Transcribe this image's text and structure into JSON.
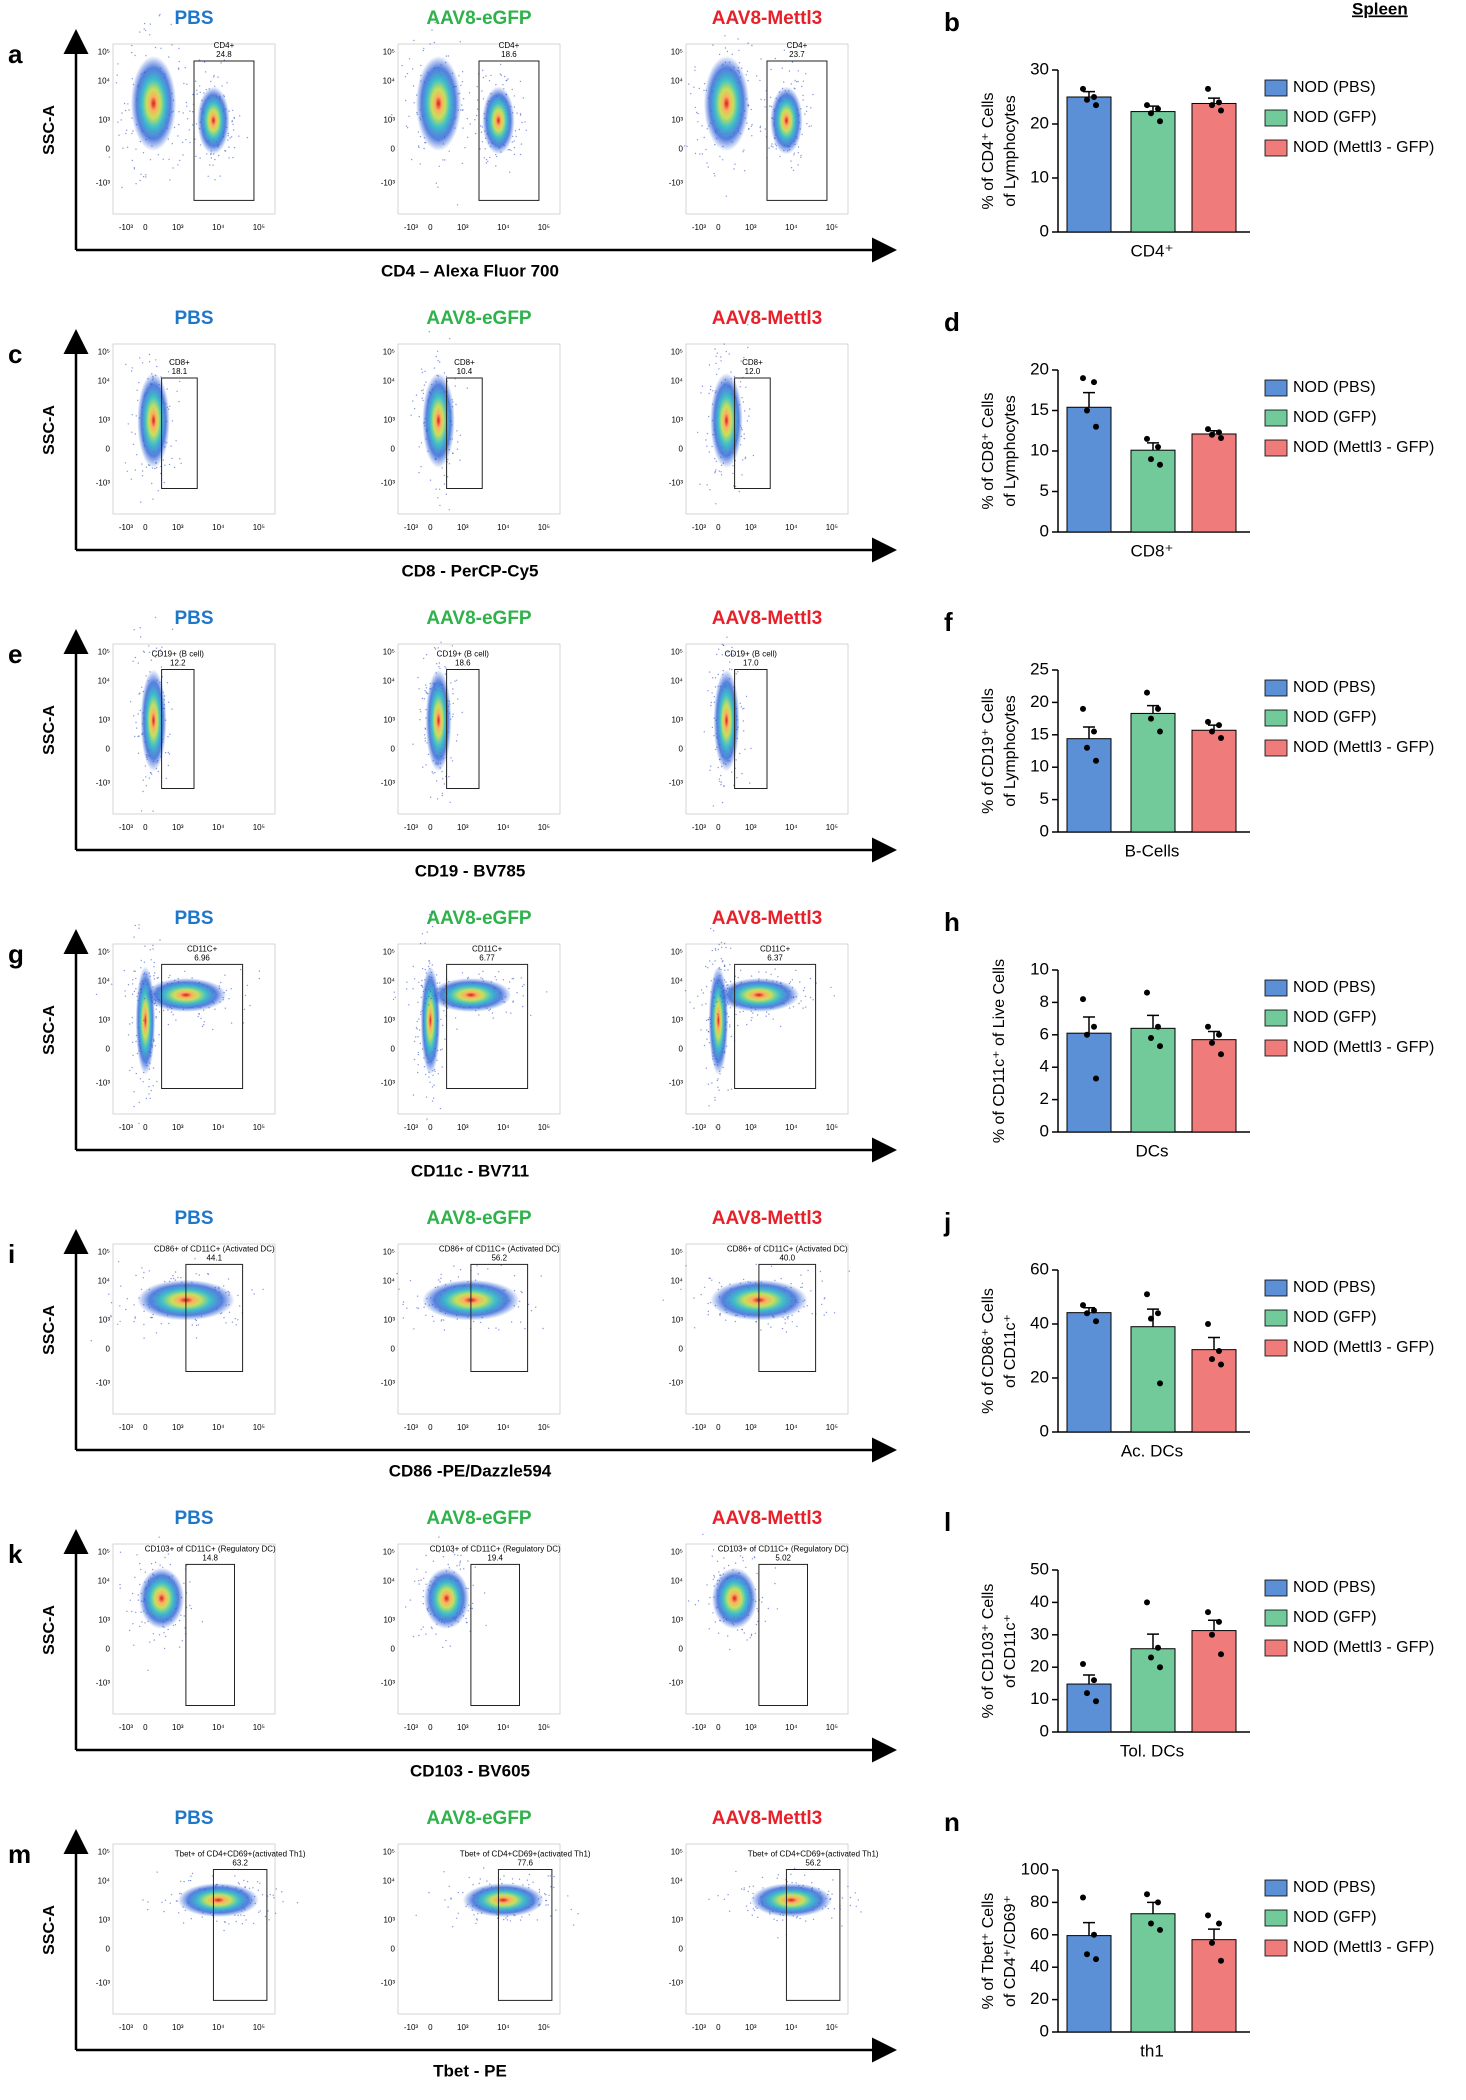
{
  "header": "Spleen",
  "flow": {
    "y_label": "SSC-A",
    "y_tick_labels": [
      "10⁵",
      "10⁴",
      "10³",
      "0",
      "-10³"
    ],
    "x_tick_labels": [
      "-10³",
      "0",
      "10³",
      "10⁴",
      "10⁵"
    ],
    "columns": [
      {
        "title": "PBS",
        "color": "#1f77c9"
      },
      {
        "title": "AAV8-eGFP",
        "color": "#2eb24a"
      },
      {
        "title": "AAV8-Mettl3",
        "color": "#e8202a"
      }
    ],
    "rows": [
      {
        "panel": "a",
        "x_label": "CD4 – Alexa Fluor 700",
        "gate_label": "CD4+",
        "percentages": [
          "24.8",
          "18.6",
          "23.7"
        ]
      },
      {
        "panel": "c",
        "x_label": "CD8 - PerCP-Cy5",
        "gate_label": "CD8+",
        "percentages": [
          "18.1",
          "10.4",
          "12.0"
        ]
      },
      {
        "panel": "e",
        "x_label": "CD19 - BV785",
        "gate_label": "CD19+ (B cell)",
        "percentages": [
          "12.2",
          "18.6",
          "17.0"
        ]
      },
      {
        "panel": "g",
        "x_label": "CD11c - BV711",
        "gate_label": "CD11C+",
        "percentages": [
          "6.96",
          "6.77",
          "6.37"
        ]
      },
      {
        "panel": "i",
        "x_label": "CD86 -PE/Dazzle594",
        "gate_label": "CD86+ of CD11C+ (Activated DC)",
        "percentages": [
          "44.1",
          "56.2",
          "40.0"
        ]
      },
      {
        "panel": "k",
        "x_label": "CD103 - BV605",
        "gate_label": "CD103+ of CD11C+ (Regulatory DC)",
        "percentages": [
          "14.8",
          "19.4",
          "5.02"
        ]
      },
      {
        "panel": "m",
        "x_label": "Tbet - PE",
        "gate_label": "Tbet+ of CD4+CD69+(activated Th1)",
        "percentages": [
          "63.2",
          "77.6",
          "56.2"
        ]
      }
    ]
  },
  "chart_data": [
    {
      "type": "bar",
      "panel": "b",
      "y_label": [
        "% of CD4⁺ Cells",
        "of Lymphocytes"
      ],
      "categories": [
        "CD4⁺"
      ],
      "ylim": [
        0,
        30
      ],
      "yticks": [
        0,
        10,
        20,
        30
      ],
      "series": [
        {
          "name": "NOD (PBS)",
          "color": "#5b8fd6",
          "values": [
            25
          ],
          "errors": [
            1
          ],
          "points": [
            26.5,
            25,
            24.5,
            23.5
          ]
        },
        {
          "name": "NOD (GFP)",
          "color": "#72c99a",
          "values": [
            22.3
          ],
          "errors": [
            1
          ],
          "points": [
            23.5,
            22.8,
            22,
            20.5
          ]
        },
        {
          "name": "NOD (Mettl3 - GFP)",
          "color": "#f07b7b",
          "values": [
            23.8
          ],
          "errors": [
            1
          ],
          "points": [
            26.5,
            24,
            23.5,
            22.5
          ]
        }
      ]
    },
    {
      "type": "bar",
      "panel": "d",
      "y_label": [
        "% of CD8⁺ Cells",
        "of Lymphocytes"
      ],
      "categories": [
        "CD8⁺"
      ],
      "ylim": [
        0,
        20
      ],
      "yticks": [
        0,
        5,
        10,
        15,
        20
      ],
      "series": [
        {
          "name": "NOD (PBS)",
          "color": "#5b8fd6",
          "values": [
            15.4
          ],
          "errors": [
            1.8
          ],
          "points": [
            19,
            18.5,
            15,
            13
          ]
        },
        {
          "name": "NOD (GFP)",
          "color": "#72c99a",
          "values": [
            10.1
          ],
          "errors": [
            0.9
          ],
          "points": [
            11.5,
            10.5,
            9,
            8.3
          ]
        },
        {
          "name": "NOD (Mettl3 - GFP)",
          "color": "#f07b7b",
          "values": [
            12.1
          ],
          "errors": [
            0.4
          ],
          "points": [
            12.7,
            12.3,
            12,
            11.6
          ]
        }
      ]
    },
    {
      "type": "bar",
      "panel": "f",
      "y_label": [
        "% of CD19⁺ Cells",
        "of Lymphocytes"
      ],
      "categories": [
        "B-Cells"
      ],
      "ylim": [
        0,
        25
      ],
      "yticks": [
        0,
        5,
        10,
        15,
        20,
        25
      ],
      "series": [
        {
          "name": "NOD (PBS)",
          "color": "#5b8fd6",
          "values": [
            14.4
          ],
          "errors": [
            1.8
          ],
          "points": [
            19,
            15.5,
            13,
            11
          ]
        },
        {
          "name": "NOD (GFP)",
          "color": "#72c99a",
          "values": [
            18.3
          ],
          "errors": [
            1.2
          ],
          "points": [
            21.5,
            19,
            17.5,
            15.5
          ]
        },
        {
          "name": "NOD (Mettl3 - GFP)",
          "color": "#f07b7b",
          "values": [
            15.7
          ],
          "errors": [
            0.8
          ],
          "points": [
            17,
            16.5,
            15.5,
            14.5
          ]
        }
      ]
    },
    {
      "type": "bar",
      "panel": "h",
      "y_label": [
        "% of CD11c⁺ of Live Cells"
      ],
      "categories": [
        "DCs"
      ],
      "ylim": [
        0,
        10
      ],
      "yticks": [
        0,
        2,
        4,
        6,
        8,
        10
      ],
      "series": [
        {
          "name": "NOD (PBS)",
          "color": "#5b8fd6",
          "values": [
            6.1
          ],
          "errors": [
            1
          ],
          "points": [
            8.2,
            6.5,
            6,
            3.3
          ]
        },
        {
          "name": "NOD (GFP)",
          "color": "#72c99a",
          "values": [
            6.4
          ],
          "errors": [
            0.8
          ],
          "points": [
            8.6,
            6.5,
            5.8,
            5.3
          ]
        },
        {
          "name": "NOD (Mettl3 - GFP)",
          "color": "#f07b7b",
          "values": [
            5.7
          ],
          "errors": [
            0.5
          ],
          "points": [
            6.5,
            6,
            5.5,
            4.8
          ]
        }
      ]
    },
    {
      "type": "bar",
      "panel": "j",
      "y_label": [
        "% of CD86⁺ Cells",
        "of CD11c⁺"
      ],
      "categories": [
        "Ac. DCs"
      ],
      "ylim": [
        0,
        60
      ],
      "yticks": [
        0,
        20,
        40,
        60
      ],
      "series": [
        {
          "name": "NOD (PBS)",
          "color": "#5b8fd6",
          "values": [
            44.2
          ],
          "errors": [
            1.8
          ],
          "points": [
            47,
            45,
            44,
            41
          ]
        },
        {
          "name": "NOD (GFP)",
          "color": "#72c99a",
          "values": [
            39
          ],
          "errors": [
            6.5
          ],
          "points": [
            51,
            44,
            42,
            18
          ]
        },
        {
          "name": "NOD (Mettl3 - GFP)",
          "color": "#f07b7b",
          "values": [
            30.5
          ],
          "errors": [
            4.5
          ],
          "points": [
            40,
            30,
            27,
            25
          ]
        }
      ]
    },
    {
      "type": "bar",
      "panel": "l",
      "y_label": [
        "% of CD103⁺ Cells",
        "of CD11c⁺"
      ],
      "categories": [
        "Tol. DCs"
      ],
      "ylim": [
        0,
        50
      ],
      "yticks": [
        0,
        10,
        20,
        30,
        40,
        50
      ],
      "series": [
        {
          "name": "NOD (PBS)",
          "color": "#5b8fd6",
          "values": [
            14.8
          ],
          "errors": [
            2.8
          ],
          "points": [
            21,
            16,
            12,
            9.5
          ]
        },
        {
          "name": "NOD (GFP)",
          "color": "#72c99a",
          "values": [
            25.7
          ],
          "errors": [
            4.5
          ],
          "points": [
            40,
            26,
            23,
            20
          ]
        },
        {
          "name": "NOD (Mettl3 - GFP)",
          "color": "#f07b7b",
          "values": [
            31.3
          ],
          "errors": [
            3.2
          ],
          "points": [
            37,
            34,
            30,
            24
          ]
        }
      ]
    },
    {
      "type": "bar",
      "panel": "n",
      "y_label": [
        "% of Tbet⁺ Cells",
        "of CD4⁺/CD69⁺"
      ],
      "categories": [
        "th1"
      ],
      "ylim": [
        0,
        100
      ],
      "yticks": [
        0,
        20,
        40,
        60,
        80,
        100
      ],
      "series": [
        {
          "name": "NOD (PBS)",
          "color": "#5b8fd6",
          "values": [
            59.5
          ],
          "errors": [
            8
          ],
          "points": [
            83,
            60,
            48,
            45
          ]
        },
        {
          "name": "NOD (GFP)",
          "color": "#72c99a",
          "values": [
            73
          ],
          "errors": [
            7
          ],
          "points": [
            85,
            80,
            67,
            63
          ]
        },
        {
          "name": "NOD (Mettl3 - GFP)",
          "color": "#f07b7b",
          "values": [
            57
          ],
          "errors": [
            6.5
          ],
          "points": [
            72,
            67,
            55,
            44
          ]
        }
      ]
    }
  ]
}
